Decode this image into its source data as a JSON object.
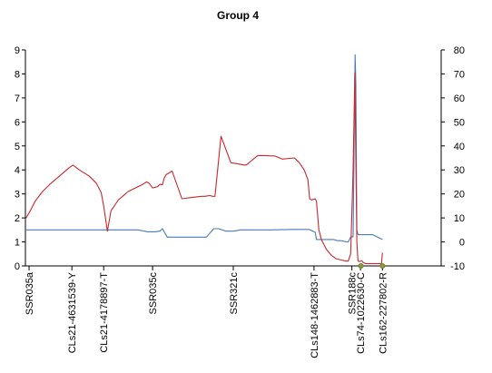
{
  "chart_data": {
    "type": "line",
    "title": "Group 4",
    "y_left": {
      "ticks": [
        "0",
        "1",
        "2",
        "3",
        "4",
        "5",
        "6",
        "7",
        "8",
        "9"
      ],
      "lim": [
        0,
        9
      ]
    },
    "y_right": {
      "ticks": [
        "-10",
        "0",
        "10",
        "20",
        "30",
        "40",
        "50",
        "60",
        "70",
        "80"
      ],
      "lim": [
        -10,
        80
      ]
    },
    "x_lim": [
      0,
      170
    ],
    "markers": [
      {
        "label": "SSR035a",
        "x": 1.5
      },
      {
        "label": "CLs21-4631539-Y",
        "x": 19
      },
      {
        "label": "CLs21-4178897-T",
        "x": 32
      },
      {
        "label": "SSR035c",
        "x": 52
      },
      {
        "label": "SSR321c",
        "x": 85
      },
      {
        "label": "CLs148-1462883-T",
        "x": 118
      },
      {
        "label": "SSR188c",
        "x": 133.5
      },
      {
        "label": "CLs74-1022630-C",
        "x": 137
      },
      {
        "label": "CLs162-227802-R",
        "x": 146
      }
    ],
    "points_at_zero": [
      137.2,
      146
    ],
    "series": [
      {
        "color": "#c8282d",
        "axis": "left",
        "x": [
          0,
          2,
          4,
          7,
          10,
          14,
          18,
          19.5,
          22,
          26,
          29,
          31,
          32,
          33.5,
          35,
          38,
          42,
          46,
          48,
          49.5,
          50.5,
          52,
          54,
          55,
          56,
          56.7,
          57.5,
          60,
          64,
          68,
          72,
          73.5,
          74.5,
          75.5,
          76.5,
          77.5,
          80,
          84,
          87,
          89.5,
          90.5,
          92,
          95,
          98,
          102,
          105,
          110,
          112,
          114,
          115.5,
          116.2,
          117,
          118.5,
          119,
          120,
          121,
          123,
          125,
          127,
          129,
          131,
          132,
          133,
          134,
          134.7,
          135.5,
          136,
          136.8,
          137.1,
          137.4,
          137.7,
          138,
          139,
          141,
          143,
          145.6,
          146
        ],
        "values": [
          1.95,
          2.3,
          2.7,
          3.1,
          3.4,
          3.75,
          4.1,
          4.2,
          4.0,
          3.75,
          3.45,
          3.05,
          2.5,
          1.45,
          2.3,
          2.75,
          3.1,
          3.3,
          3.4,
          3.5,
          3.45,
          3.25,
          3.3,
          3.4,
          3.38,
          3.65,
          3.8,
          3.95,
          2.8,
          2.85,
          2.9,
          2.9,
          2.92,
          2.93,
          2.9,
          2.9,
          5.4,
          4.3,
          4.25,
          4.2,
          4.22,
          4.35,
          4.6,
          4.6,
          4.58,
          4.45,
          4.5,
          4.3,
          4.0,
          3.6,
          2.8,
          2.75,
          2.8,
          2.7,
          1.5,
          1.1,
          0.7,
          0.45,
          0.3,
          0.25,
          0.2,
          0.2,
          0.5,
          4.0,
          8.05,
          1.0,
          0.2,
          0.18,
          0.2,
          0.22,
          0.2,
          0.15,
          0.1,
          0.1,
          0.1,
          0.1,
          0.55
        ]
      },
      {
        "color": "#4a7bb7",
        "axis": "left",
        "x": [
          0,
          18,
          32,
          46,
          50,
          53,
          55,
          56,
          58,
          60,
          70,
          74,
          77,
          79,
          82,
          85,
          88,
          100,
          110,
          116,
          118.5,
          119,
          121,
          124,
          126,
          127.5,
          129,
          131.5,
          132,
          133,
          134,
          134.8,
          135.1,
          135.5,
          136,
          137,
          142,
          146
        ],
        "values": [
          1.5,
          1.5,
          1.5,
          1.5,
          1.42,
          1.42,
          1.45,
          1.55,
          1.2,
          1.2,
          1.2,
          1.2,
          1.55,
          1.55,
          1.45,
          1.45,
          1.5,
          1.5,
          1.52,
          1.52,
          1.4,
          1.1,
          1.1,
          1.1,
          1.1,
          1.05,
          1.05,
          1.0,
          1.0,
          1.2,
          1.22,
          8.8,
          7.6,
          1.5,
          1.3,
          1.3,
          1.3,
          1.1
        ]
      }
    ]
  }
}
